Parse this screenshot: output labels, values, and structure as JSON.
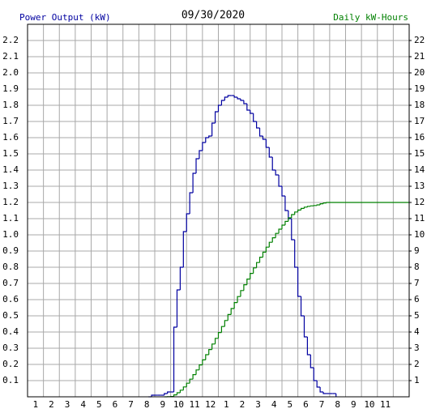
{
  "chart_data": {
    "type": "step",
    "title": "09/30/2020",
    "xlim": [
      0,
      24
    ],
    "xticks": [
      1,
      2,
      3,
      4,
      5,
      6,
      7,
      8,
      9,
      10,
      11,
      12,
      {
        "value": 13,
        "label": "1"
      },
      {
        "value": 14,
        "label": "2"
      },
      {
        "value": 15,
        "label": "3"
      },
      {
        "value": 16,
        "label": "4"
      },
      {
        "value": 17,
        "label": "5"
      },
      {
        "value": 18,
        "label": "6"
      },
      {
        "value": 19,
        "label": "7"
      },
      {
        "value": 20,
        "label": "8"
      },
      {
        "value": 21,
        "label": "9"
      },
      {
        "value": 22,
        "label": "10"
      },
      {
        "value": 23,
        "label": "11"
      }
    ],
    "ylim": [
      0,
      2.3
    ],
    "yticks": [
      0.1,
      0.2,
      0.3,
      0.4,
      0.5,
      0.6,
      0.7,
      0.8,
      0.9,
      {
        "value": 1,
        "label": "1.0"
      },
      1.1,
      1.2,
      1.3,
      1.4,
      1.5,
      1.6,
      1.7,
      1.8,
      1.9,
      {
        "value": 2,
        "label": "2.0"
      },
      2.1,
      2.2
    ],
    "y2lim": [
      0,
      23
    ],
    "y2ticks": [
      1,
      2,
      3,
      4,
      5,
      6,
      7,
      8,
      9,
      10,
      11,
      12,
      13,
      14,
      15,
      16,
      17,
      18,
      19,
      20,
      21,
      22
    ],
    "grid": true,
    "series": [
      {
        "name": "Power Output (kW)",
        "color": "#0000a0",
        "axis": "y",
        "x": [
          7.6,
          7.8,
          8.0,
          8.2,
          8.4,
          8.6,
          8.8,
          9.0,
          9.2,
          9.4,
          9.6,
          9.8,
          10.0,
          10.2,
          10.4,
          10.6,
          10.8,
          11.0,
          11.2,
          11.4,
          11.6,
          11.8,
          12.0,
          12.2,
          12.4,
          12.6,
          12.8,
          13.0,
          13.2,
          13.4,
          13.6,
          13.8,
          14.0,
          14.2,
          14.4,
          14.6,
          14.8,
          15.0,
          15.2,
          15.4,
          15.6,
          15.8,
          16.0,
          16.2,
          16.4,
          16.6,
          16.8,
          17.0,
          17.2,
          17.4,
          17.6,
          17.8,
          18.0,
          18.2,
          18.4,
          18.6,
          18.8,
          19.0,
          19.2,
          19.4
        ],
        "values": [
          0,
          0.01,
          0.01,
          0.01,
          0.01,
          0.02,
          0.03,
          0.03,
          0.43,
          0.66,
          0.8,
          1.02,
          1.13,
          1.26,
          1.38,
          1.47,
          1.52,
          1.57,
          1.6,
          1.61,
          1.69,
          1.76,
          1.8,
          1.83,
          1.85,
          1.86,
          1.86,
          1.85,
          1.84,
          1.83,
          1.81,
          1.77,
          1.75,
          1.7,
          1.66,
          1.61,
          1.59,
          1.54,
          1.48,
          1.4,
          1.37,
          1.3,
          1.24,
          1.15,
          1.1,
          0.97,
          0.8,
          0.62,
          0.5,
          0.37,
          0.26,
          0.18,
          0.1,
          0.06,
          0.03,
          0.02,
          0.02,
          0.02,
          0.02,
          0
        ]
      },
      {
        "name": "Daily kW-Hours",
        "color": "#008000",
        "axis": "y2",
        "x": [
          8.6,
          8.8,
          9.0,
          9.2,
          9.4,
          9.6,
          9.8,
          10.0,
          10.2,
          10.4,
          10.6,
          10.8,
          11.0,
          11.2,
          11.4,
          11.6,
          11.8,
          12.0,
          12.2,
          12.4,
          12.6,
          12.8,
          13.0,
          13.2,
          13.4,
          13.6,
          13.8,
          14.0,
          14.2,
          14.4,
          14.6,
          14.8,
          15.0,
          15.2,
          15.4,
          15.6,
          15.8,
          16.0,
          16.2,
          16.4,
          16.6,
          16.8,
          17.0,
          17.2,
          17.4,
          17.6,
          17.8,
          18.0,
          18.2,
          18.4,
          18.6,
          18.8,
          24.0
        ],
        "values": [
          0,
          0.01,
          0.02,
          0.12,
          0.25,
          0.41,
          0.61,
          0.84,
          1.09,
          1.37,
          1.66,
          1.97,
          2.28,
          2.6,
          2.92,
          3.26,
          3.61,
          3.97,
          4.34,
          4.71,
          5.08,
          5.45,
          5.82,
          6.19,
          6.56,
          6.92,
          7.27,
          7.62,
          7.96,
          8.29,
          8.62,
          8.93,
          9.24,
          9.54,
          9.82,
          10.09,
          10.35,
          10.6,
          10.83,
          11.05,
          11.25,
          11.41,
          11.53,
          11.63,
          11.71,
          11.76,
          11.79,
          11.81,
          11.85,
          11.92,
          11.97,
          12.0,
          12.0
        ]
      }
    ]
  }
}
